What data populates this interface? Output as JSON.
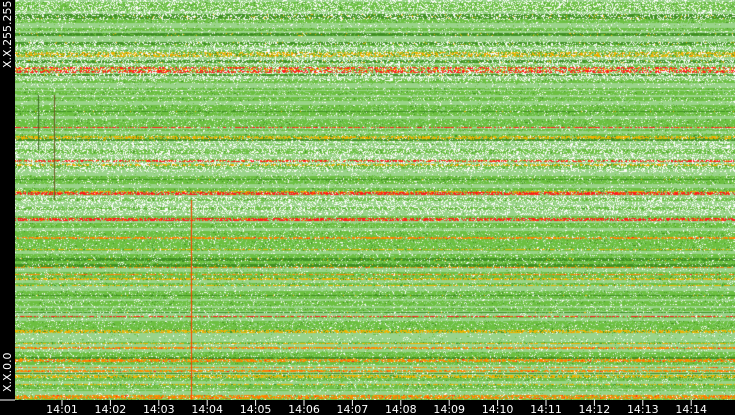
{
  "chart_data": {
    "type": "heatmap",
    "y_axis": {
      "top_label": "X.X.255.255",
      "bottom_label": "X.X.0.0"
    },
    "x_axis": {
      "tick_labels": [
        "14:01",
        "14:02",
        "14:03",
        "14:04",
        "14:05",
        "14:06",
        "14:07",
        "14:08",
        "14:09",
        "14:10",
        "14:11",
        "14:12",
        "14:13",
        "14:14"
      ]
    },
    "color_scale": [
      "#ffffff",
      "#9ad48a",
      "#6cc040",
      "#3f8f22",
      "#f0b400",
      "#ff8000",
      "#ff1a1a"
    ],
    "vertical_events": [
      {
        "time": "14:03:40",
        "color": "#ff4000"
      },
      {
        "time": "14:00:50",
        "color": "#6a5a20"
      },
      {
        "time": "14:00:30",
        "color": "#3f6f22"
      }
    ],
    "grid": false,
    "legend": "none"
  }
}
